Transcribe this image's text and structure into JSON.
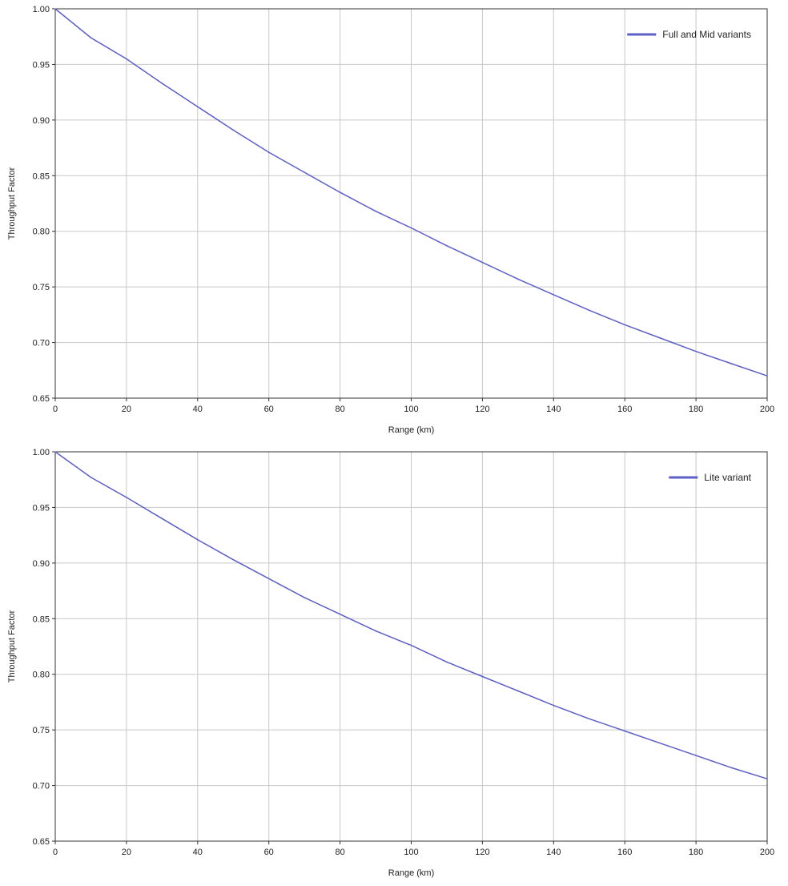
{
  "chart_data": [
    {
      "type": "line",
      "title": "",
      "xlabel": "Range (km)",
      "ylabel": "Throughput Factor",
      "xlim": [
        0,
        200
      ],
      "ylim": [
        0.65,
        1.0
      ],
      "xticks": [
        "0",
        "20",
        "40",
        "60",
        "80",
        "100",
        "120",
        "140",
        "160",
        "180",
        "200"
      ],
      "yticks": [
        "0.65",
        "0.70",
        "0.75",
        "0.80",
        "0.85",
        "0.90",
        "0.95",
        "1.00"
      ],
      "grid": true,
      "legend_position": "top-right",
      "series": [
        {
          "name": "Full and Mid variants",
          "color": "#5b5fc7",
          "x": [
            0,
            10,
            20,
            30,
            40,
            50,
            60,
            70,
            80,
            90,
            100,
            110,
            120,
            130,
            140,
            150,
            160,
            170,
            180,
            190,
            200
          ],
          "y": [
            1.0,
            0.974,
            0.955,
            0.933,
            0.912,
            0.891,
            0.871,
            0.853,
            0.835,
            0.818,
            0.803,
            0.787,
            0.772,
            0.757,
            0.743,
            0.729,
            0.716,
            0.704,
            0.692,
            0.681,
            0.67
          ]
        }
      ]
    },
    {
      "type": "line",
      "title": "",
      "xlabel": "Range (km)",
      "ylabel": "Throughput Factor",
      "xlim": [
        0,
        200
      ],
      "ylim": [
        0.65,
        1.0
      ],
      "xticks": [
        "0",
        "20",
        "40",
        "60",
        "80",
        "100",
        "120",
        "140",
        "160",
        "180",
        "200"
      ],
      "yticks": [
        "0.65",
        "0.70",
        "0.75",
        "0.80",
        "0.85",
        "0.90",
        "0.95",
        "1.00"
      ],
      "grid": true,
      "legend_position": "top-right",
      "series": [
        {
          "name": "Lite variant",
          "color": "#5b5fc7",
          "x": [
            0,
            10,
            20,
            30,
            40,
            50,
            60,
            70,
            80,
            90,
            100,
            110,
            120,
            130,
            140,
            150,
            160,
            170,
            180,
            190,
            200
          ],
          "y": [
            1.0,
            0.977,
            0.959,
            0.94,
            0.921,
            0.903,
            0.886,
            0.869,
            0.854,
            0.839,
            0.826,
            0.811,
            0.798,
            0.785,
            0.772,
            0.76,
            0.749,
            0.738,
            0.727,
            0.716,
            0.706
          ]
        }
      ]
    }
  ]
}
